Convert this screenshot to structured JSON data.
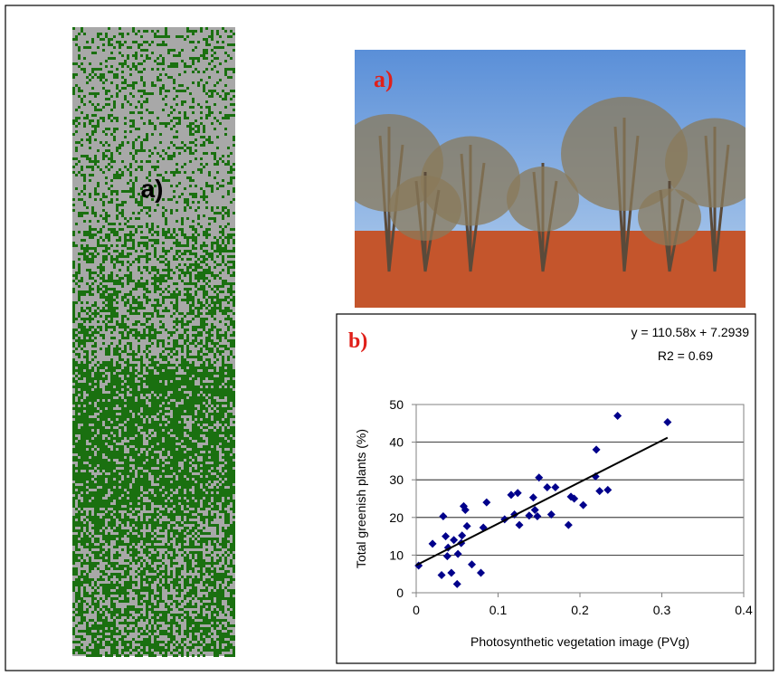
{
  "figure": {
    "strip_label": "a)",
    "photo_label": "a)"
  },
  "chart_data": {
    "type": "scatter",
    "panel_label": "b)",
    "annotations": [
      "y = 110.58x + 7.2939",
      "R2 = 0.69"
    ],
    "xlabel": "Photosynthetic vegetation image (PVg)",
    "ylabel": "Total greenish plants (%)",
    "xlim": [
      0,
      0.4
    ],
    "xticks": [
      0,
      0.1,
      0.2,
      0.3,
      0.4
    ],
    "ylim": [
      0,
      50
    ],
    "yticks": [
      0,
      10,
      20,
      30,
      40,
      50
    ],
    "grid": true,
    "color": "#00008b",
    "trendline_color": "#000000",
    "x": [
      0.003,
      0.02,
      0.033,
      0.031,
      0.036,
      0.039,
      0.038,
      0.043,
      0.046,
      0.05,
      0.051,
      0.055,
      0.056,
      0.058,
      0.06,
      0.062,
      0.068,
      0.079,
      0.082,
      0.086,
      0.108,
      0.116,
      0.12,
      0.124,
      0.126,
      0.138,
      0.143,
      0.145,
      0.148,
      0.15,
      0.16,
      0.165,
      0.17,
      0.186,
      0.189,
      0.193,
      0.204,
      0.219,
      0.22,
      0.224,
      0.234,
      0.246,
      0.307
    ],
    "values": [
      7.2,
      13,
      20.3,
      4.7,
      15,
      12,
      9.7,
      5.3,
      14,
      2.3,
      10.3,
      13.2,
      15.2,
      23,
      22,
      17.7,
      7.5,
      5.3,
      17.3,
      24,
      19.5,
      26,
      20.8,
      26.5,
      18,
      20.5,
      25.3,
      22,
      20.3,
      30.6,
      28,
      20.8,
      28,
      18,
      25.5,
      25,
      23.3,
      30.9,
      38,
      27,
      27.3,
      47,
      45.3
    ],
    "trendline": {
      "x": [
        0,
        0.307
      ],
      "values": [
        7.3,
        41.2
      ]
    }
  }
}
